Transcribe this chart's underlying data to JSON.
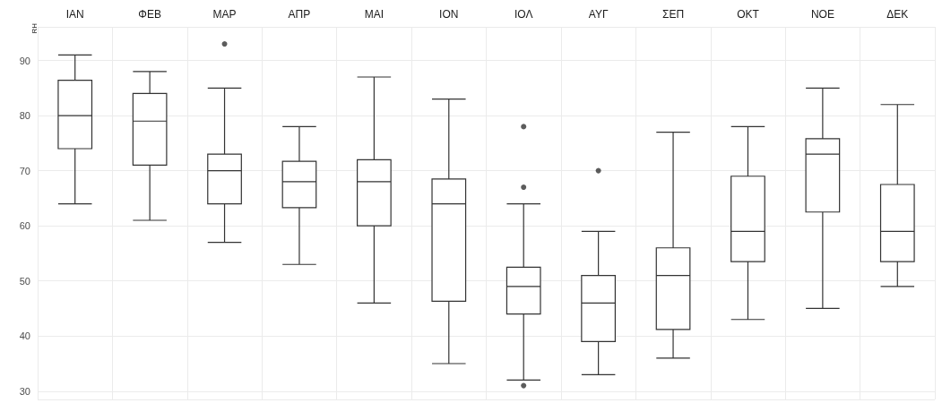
{
  "chart_data": {
    "type": "box",
    "ylabel": "RH",
    "categories": [
      "ΙΑΝ",
      "ΦΕΒ",
      "ΜΑΡ",
      "ΑΠΡ",
      "ΜΑΙ",
      "ΙΟΝ",
      "ΙΟΛ",
      "ΑΥΓ",
      "ΣΕΠ",
      "ΟΚΤ",
      "ΝΟΕ",
      "ΔΕΚ"
    ],
    "boxes": [
      {
        "low": 64,
        "q1": 74,
        "median": 80,
        "q3": 86.4,
        "high": 91
      },
      {
        "low": 61,
        "q1": 71,
        "median": 79,
        "q3": 84,
        "high": 88
      },
      {
        "low": 57,
        "q1": 64,
        "median": 70,
        "q3": 73,
        "high": 85,
        "outliers": [
          93
        ]
      },
      {
        "low": 53,
        "q1": 63.3,
        "median": 68,
        "q3": 71.7,
        "high": 78
      },
      {
        "low": 46,
        "q1": 60,
        "median": 68,
        "q3": 72,
        "high": 87
      },
      {
        "low": 35,
        "q1": 46.3,
        "median": 64,
        "q3": 68.5,
        "high": 83
      },
      {
        "low": 32,
        "q1": 44,
        "median": 49,
        "q3": 52.5,
        "high": 64,
        "outliers": [
          78,
          67,
          31
        ]
      },
      {
        "low": 33,
        "q1": 39,
        "median": 46,
        "q3": 51,
        "high": 59,
        "outliers": [
          70
        ]
      },
      {
        "low": 36,
        "q1": 41.2,
        "median": 51,
        "q3": 56,
        "high": 77
      },
      {
        "low": 43,
        "q1": 53.5,
        "median": 59,
        "q3": 69,
        "high": 78
      },
      {
        "low": 45,
        "q1": 62.5,
        "median": 73,
        "q3": 75.8,
        "high": 85
      },
      {
        "low": 49,
        "q1": 53.5,
        "median": 59,
        "q3": 67.5,
        "high": 82
      }
    ],
    "ylim": [
      28.5,
      96.1
    ],
    "yticks": [
      30,
      40,
      50,
      60,
      70,
      80,
      90
    ],
    "grid": true
  }
}
